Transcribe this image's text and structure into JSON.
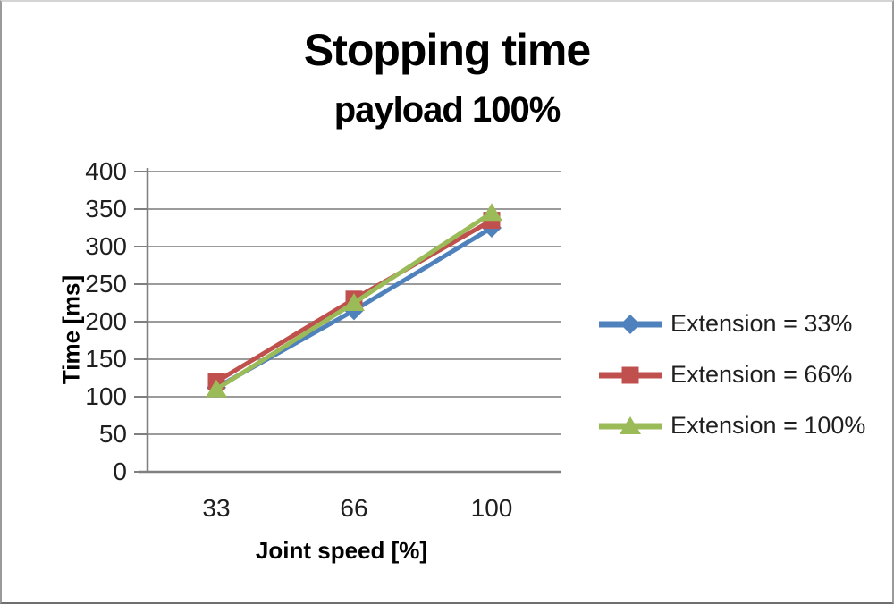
{
  "title": {
    "line1": "Stopping time",
    "line2": "payload 100%"
  },
  "chart_data": {
    "type": "line",
    "title": "Stopping time",
    "subtitle": "payload 100%",
    "x": [
      "33",
      "66",
      "100"
    ],
    "xlabel": "Joint speed [%]",
    "ylabel": "Time [ms]",
    "ylim": [
      0,
      400
    ],
    "yticks": [
      0,
      50,
      100,
      150,
      200,
      250,
      300,
      350,
      400
    ],
    "grid": "horizontal",
    "legend_position": "right",
    "series": [
      {
        "name": "Extension = 33%",
        "marker": "diamond",
        "color": "#4F81BD",
        "values": [
          112,
          215,
          325
        ]
      },
      {
        "name": "Extension = 66%",
        "marker": "square",
        "color": "#C0504D",
        "values": [
          120,
          230,
          335
        ]
      },
      {
        "name": "Extension = 100%",
        "marker": "triangle",
        "color": "#9BBB59",
        "values": [
          110,
          225,
          345
        ]
      }
    ]
  },
  "colors": {
    "background": "#FFFFFF",
    "gridline": "#9B9B9B",
    "axis": "#7F7F7F",
    "text": "#1F1F1F",
    "frame_border": "#9A9A9A"
  }
}
